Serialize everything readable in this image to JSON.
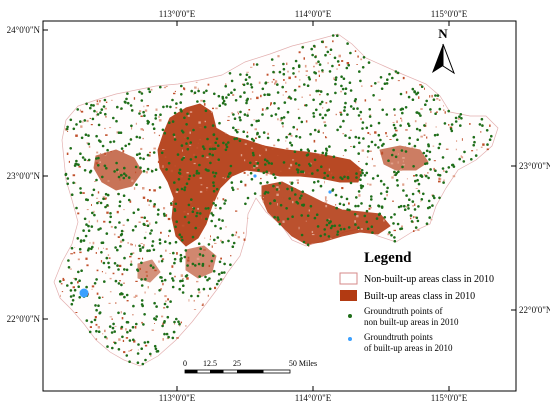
{
  "map": {
    "coords": {
      "top": [
        "113°0'0\"E",
        "114°0'0\"E",
        "115°0'0\"E"
      ],
      "bottom": [
        "113°0'0\"E",
        "114°0'0\"E",
        "115°0'0\"E"
      ],
      "left": [
        "24°0'0\"N",
        "23°0'0\"N",
        "22°0'0\"N"
      ],
      "right": [
        "23°0'0\"N",
        "22°0'0\"N"
      ]
    },
    "north_label": "N",
    "legend": {
      "title": "Legend",
      "items": [
        {
          "label": "Non-built-up areas class in 2010"
        },
        {
          "label": "Built-up areas class in 2010"
        },
        {
          "line1": "Groundtruth points of",
          "line2": "non built-up areas in 2010"
        },
        {
          "line1": "Groundtruth points",
          "line2": "of built-up areas in 2010"
        }
      ]
    },
    "scale_bar": {
      "ticks": [
        "0",
        "12.5",
        "25",
        "50 Miles"
      ]
    },
    "colors": {
      "frame": "#000000",
      "built_up": "#b23a12",
      "non_built_up_fill": "#ffffff",
      "non_built_up_outline": "#d68a8a",
      "green_points": "#1f6e1a",
      "blue_points": "#3ba0ff"
    }
  }
}
